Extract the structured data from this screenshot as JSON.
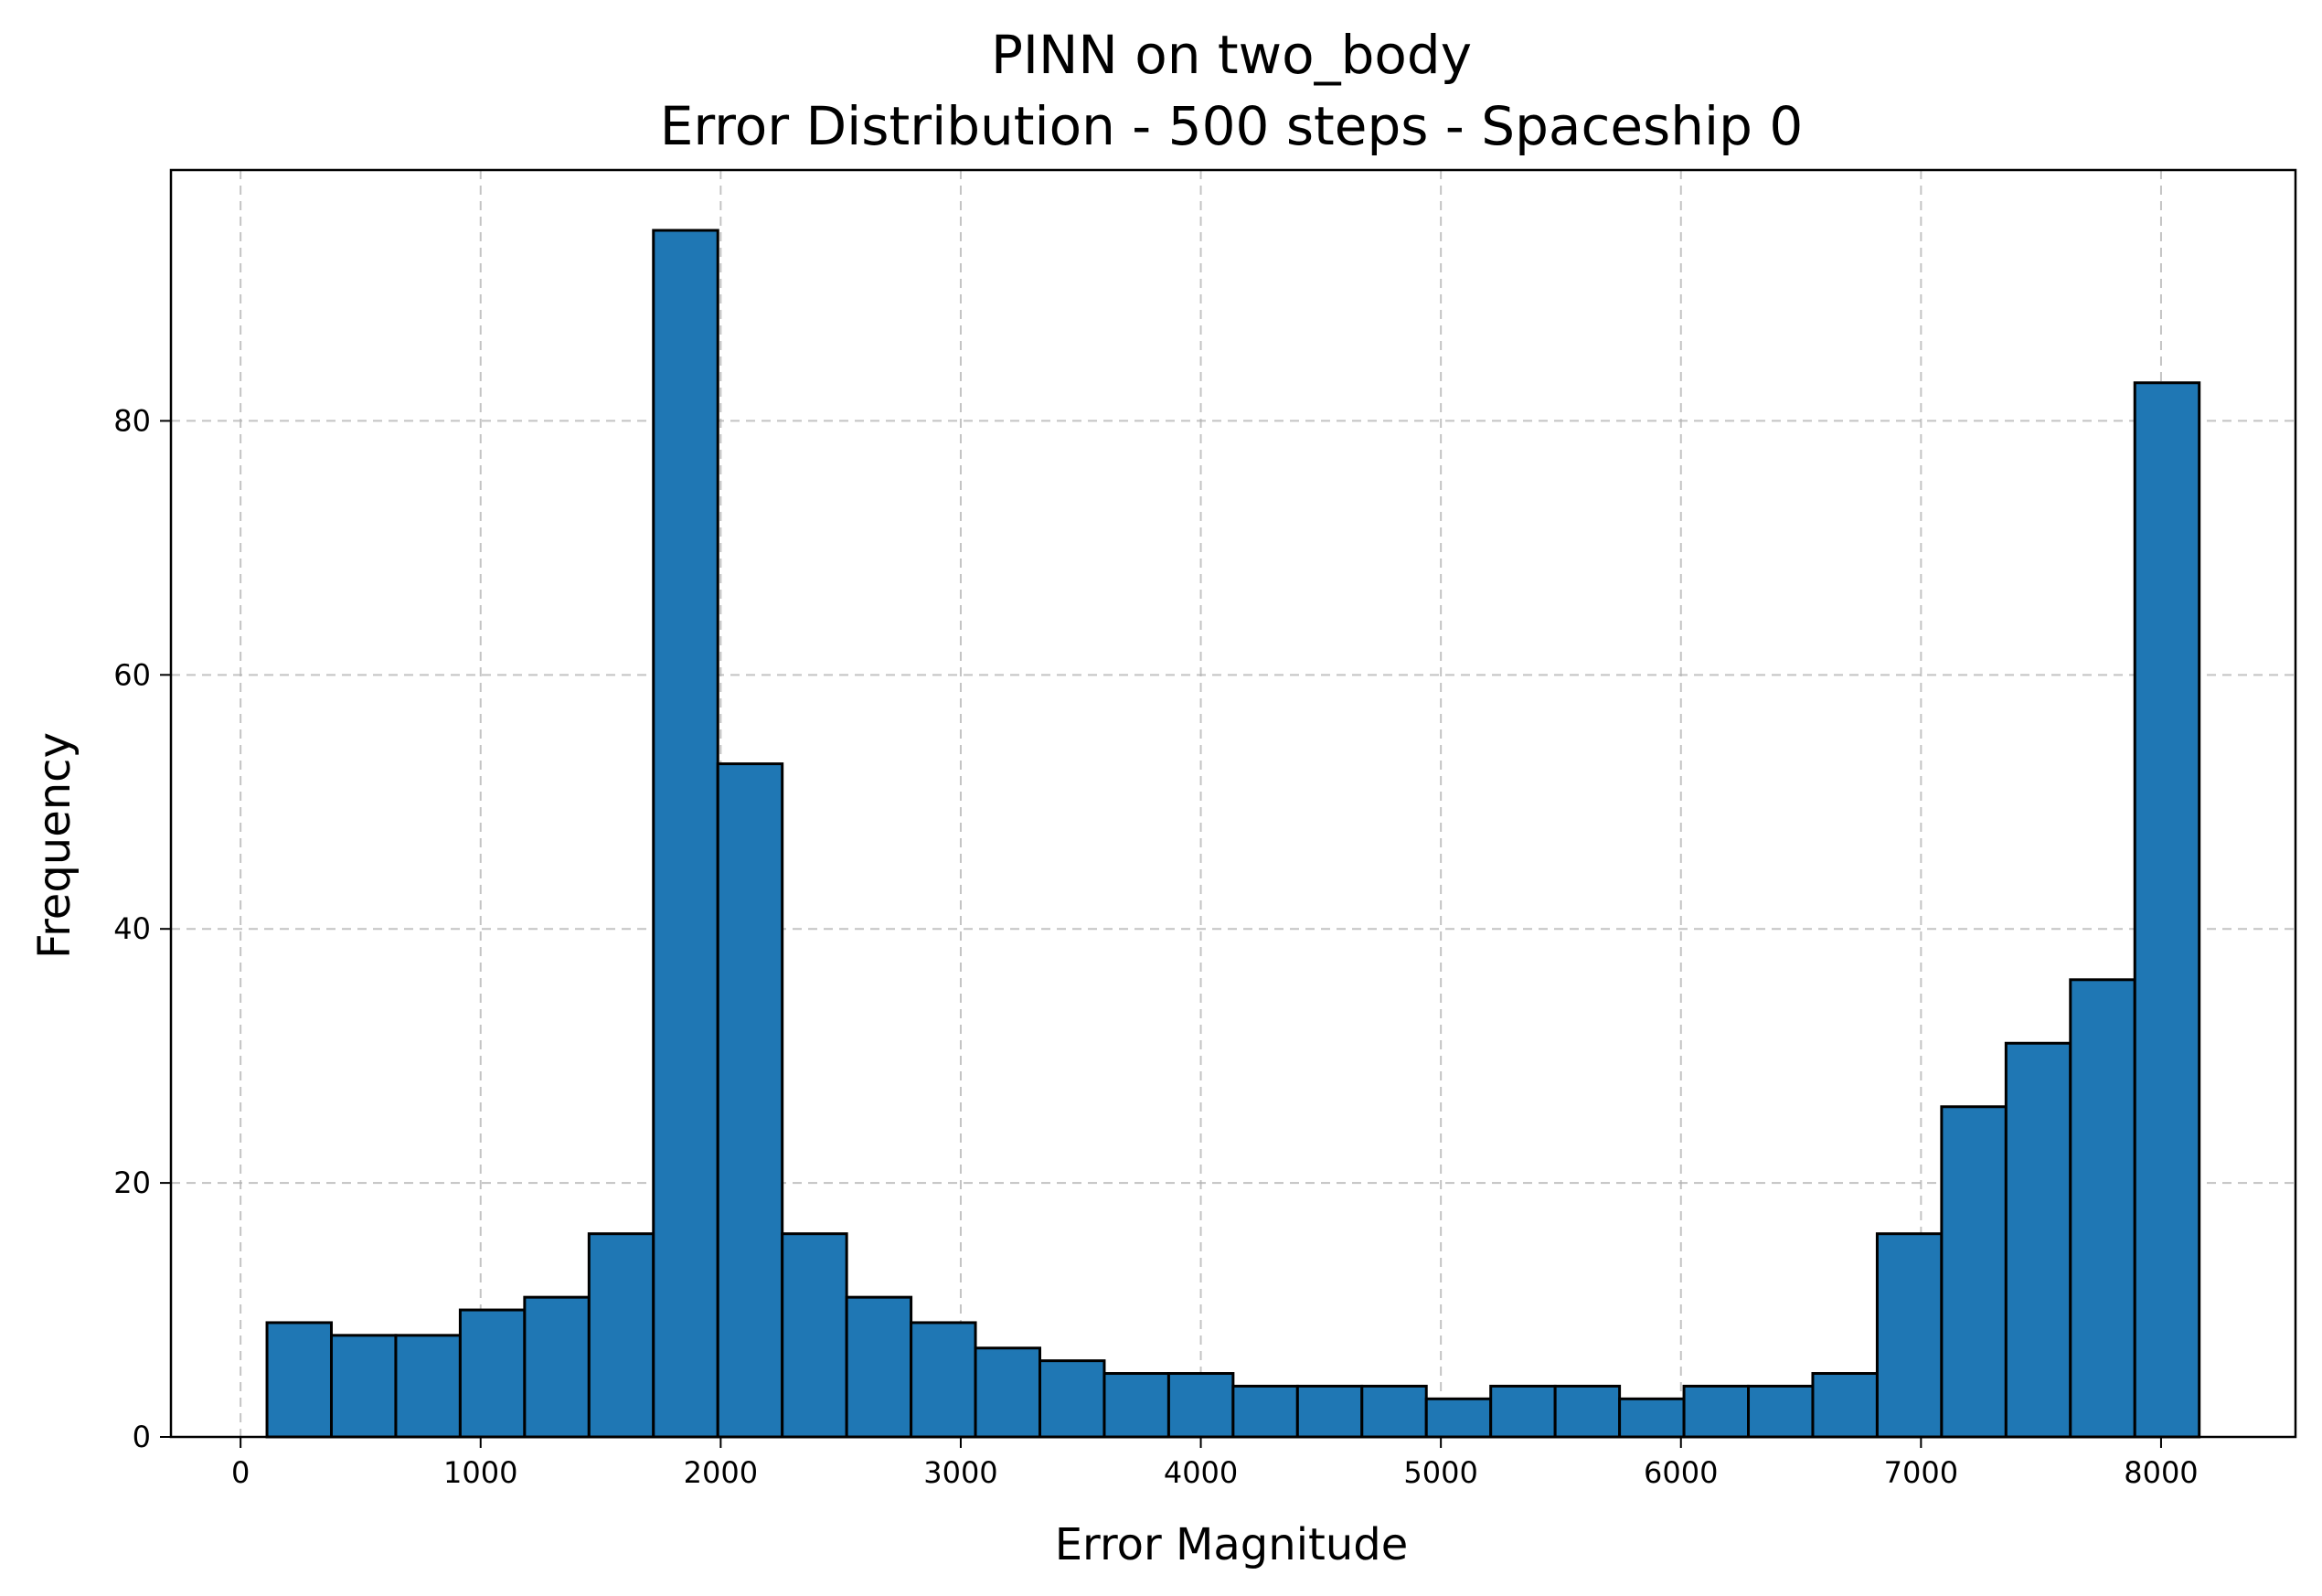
{
  "chart_data": {
    "type": "bar",
    "title": "PINN on two_body",
    "subtitle": "Error Distribution - 500 steps - Spaceship 0",
    "xlabel": "Error Magnitude",
    "ylabel": "Frequency",
    "xlim": [
      -290,
      8560
    ],
    "ylim": [
      0,
      99.75
    ],
    "xticks": [
      0,
      1000,
      2000,
      3000,
      4000,
      5000,
      6000,
      7000,
      8000
    ],
    "yticks": [
      0,
      20,
      40,
      60,
      80
    ],
    "grid": true,
    "bar_color": "#1f77b4",
    "edge_color": "#000000",
    "bin_start": 110,
    "bin_width": 268.3,
    "values": [
      9,
      8,
      8,
      10,
      11,
      16,
      95,
      53,
      16,
      11,
      9,
      7,
      6,
      5,
      5,
      4,
      4,
      4,
      3,
      4,
      4,
      3,
      4,
      4,
      5,
      16,
      26,
      31,
      36,
      83
    ]
  }
}
